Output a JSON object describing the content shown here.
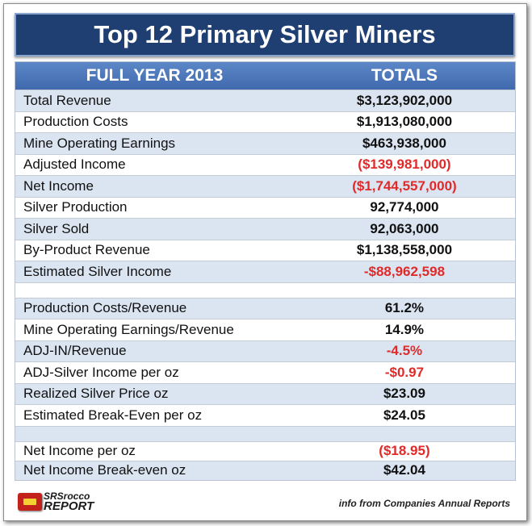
{
  "title": "Top 12 Primary Silver Miners",
  "header": {
    "period": "FULL YEAR 2013",
    "totals": "TOTALS"
  },
  "rows": [
    {
      "label": "Total Revenue",
      "value": "$3,123,902,000",
      "negative": false
    },
    {
      "label": "Production Costs",
      "value": "$1,913,080,000",
      "negative": false
    },
    {
      "label": "Mine Operating Earnings",
      "value": "$463,938,000",
      "negative": false
    },
    {
      "label": "Adjusted Income",
      "value": "($139,981,000)",
      "negative": true
    },
    {
      "label": "Net Income",
      "value": "($1,744,557,000)",
      "negative": true
    },
    {
      "label": "Silver Production",
      "value": "92,774,000",
      "negative": false
    },
    {
      "label": "Silver Sold",
      "value": "92,063,000",
      "negative": false
    },
    {
      "label": "By-Product Revenue",
      "value": "$1,138,558,000",
      "negative": false
    },
    {
      "label": "Estimated Silver Income",
      "value": "-$88,962,598",
      "negative": true
    },
    {
      "label": "Production Costs/Revenue",
      "value": "61.2%",
      "negative": false
    },
    {
      "label": "Mine Operating Earnings/Revenue",
      "value": "14.9%",
      "negative": false
    },
    {
      "label": "ADJ-IN/Revenue",
      "value": "-4.5%",
      "negative": true
    },
    {
      "label": "ADJ-Silver Income per oz",
      "value": "-$0.97",
      "negative": true
    },
    {
      "label": "Realized Silver Price oz",
      "value": "$23.09",
      "negative": false
    },
    {
      "label": "Estimated Break-Even per oz",
      "value": "$24.05",
      "negative": false
    },
    {
      "label": "Net Income per oz",
      "value": "($18.95)",
      "negative": true
    },
    {
      "label": "Net Income Break-even oz",
      "value": "$42.04",
      "negative": false
    }
  ],
  "footer": {
    "logo_line1": "SRSrocco",
    "logo_line2": "REPORT",
    "source": "info from Companies Annual Reports"
  },
  "colors": {
    "title_bg": "#1f3f73",
    "header_bg": "#4a74b8",
    "alt_row": "#dbe5f1",
    "negative": "#e02a2a"
  }
}
